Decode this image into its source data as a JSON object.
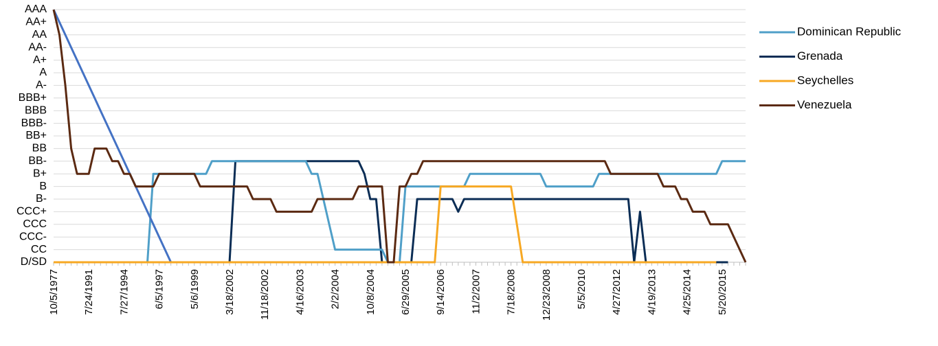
{
  "chart_data": {
    "type": "line",
    "categories": [
      "10/5/1977",
      null,
      null,
      null,
      null,
      null,
      "7/24/1991",
      null,
      null,
      null,
      null,
      null,
      "7/27/1994",
      null,
      null,
      null,
      null,
      null,
      "6/5/1997",
      null,
      null,
      null,
      null,
      null,
      "5/6/1999",
      null,
      null,
      null,
      null,
      null,
      "3/18/2002",
      null,
      null,
      null,
      null,
      null,
      "11/18/2002",
      null,
      null,
      null,
      null,
      null,
      "4/16/2003",
      null,
      null,
      null,
      null,
      null,
      "2/2/2004",
      null,
      null,
      null,
      null,
      null,
      "10/8/2004",
      null,
      null,
      null,
      null,
      null,
      "6/29/2005",
      null,
      null,
      null,
      null,
      null,
      "9/14/2006",
      null,
      null,
      null,
      null,
      null,
      "11/2/2007",
      null,
      null,
      null,
      null,
      null,
      "7/18/2008",
      null,
      null,
      null,
      null,
      null,
      "12/23/2008",
      null,
      null,
      null,
      null,
      null,
      "5/5/2010",
      null,
      null,
      null,
      null,
      null,
      "4/27/2012",
      null,
      null,
      null,
      null,
      null,
      "4/19/2013",
      null,
      null,
      null,
      null,
      null,
      "4/25/2014",
      null,
      null,
      null,
      null,
      null,
      "5/20/2015",
      null,
      null,
      null,
      null
    ],
    "ylim": [
      0,
      20
    ],
    "yticks": [
      {
        "value": 0,
        "label": "D/SD"
      },
      {
        "value": 1,
        "label": "CC"
      },
      {
        "value": 2,
        "label": "CCC-"
      },
      {
        "value": 3,
        "label": "CCC"
      },
      {
        "value": 4,
        "label": "CCC+"
      },
      {
        "value": 5,
        "label": "B-"
      },
      {
        "value": 6,
        "label": "B"
      },
      {
        "value": 7,
        "label": "B+"
      },
      {
        "value": 8,
        "label": "BB-"
      },
      {
        "value": 9,
        "label": "BB"
      },
      {
        "value": 10,
        "label": "BB+"
      },
      {
        "value": 11,
        "label": "BBB-"
      },
      {
        "value": 12,
        "label": "BBB"
      },
      {
        "value": 13,
        "label": "BBB+"
      },
      {
        "value": 14,
        "label": "A-"
      },
      {
        "value": 15,
        "label": "A"
      },
      {
        "value": 16,
        "label": "A+"
      },
      {
        "value": 17,
        "label": "AA-"
      },
      {
        "value": 18,
        "label": "AA"
      },
      {
        "value": 19,
        "label": "AA+"
      },
      {
        "value": 20,
        "label": "AAA"
      }
    ],
    "grid": true,
    "legend": "right",
    "series": [
      {
        "name": "Dominican Republic",
        "color": "#4f9fc8",
        "values": [
          0,
          0,
          0,
          0,
          0,
          0,
          0,
          0,
          0,
          0,
          0,
          0,
          0,
          0,
          0,
          0,
          0,
          7,
          7,
          7,
          7,
          7,
          7,
          7,
          7,
          7,
          7,
          8,
          8,
          8,
          8,
          8,
          8,
          8,
          8,
          8,
          8,
          8,
          8,
          8,
          8,
          8,
          8,
          8,
          7,
          7,
          5,
          3,
          1,
          1,
          1,
          1,
          1,
          1,
          1,
          1,
          1,
          0,
          0,
          0,
          6,
          6,
          6,
          6,
          6,
          6,
          6,
          6,
          6,
          6,
          6,
          7,
          7,
          7,
          7,
          7,
          7,
          7,
          7,
          7,
          7,
          7,
          7,
          7,
          6,
          6,
          6,
          6,
          6,
          6,
          6,
          6,
          6,
          7,
          7,
          7,
          7,
          7,
          7,
          7,
          7,
          7,
          7,
          7,
          7,
          7,
          7,
          7,
          7,
          7,
          7,
          7,
          7,
          7,
          8,
          8,
          8,
          8,
          8
        ]
      },
      {
        "name": "Grenada",
        "color": "#0b2d55",
        "values": [
          0,
          0,
          0,
          0,
          0,
          0,
          0,
          0,
          0,
          0,
          0,
          0,
          0,
          0,
          0,
          0,
          0,
          0,
          0,
          0,
          0,
          0,
          0,
          0,
          0,
          0,
          0,
          0,
          0,
          0,
          0,
          8,
          8,
          8,
          8,
          8,
          8,
          8,
          8,
          8,
          8,
          8,
          8,
          8,
          8,
          8,
          8,
          8,
          8,
          8,
          8,
          8,
          8,
          7,
          5,
          5,
          0,
          0,
          0,
          0,
          0,
          0,
          5,
          5,
          5,
          5,
          5,
          5,
          5,
          4,
          5,
          5,
          5,
          5,
          5,
          5,
          5,
          5,
          5,
          5,
          5,
          5,
          5,
          5,
          5,
          5,
          5,
          5,
          5,
          5,
          5,
          5,
          5,
          5,
          5,
          5,
          5,
          5,
          5,
          0,
          4,
          0,
          0,
          0,
          0,
          0,
          0,
          0,
          0,
          0,
          0,
          0,
          0,
          0,
          0,
          0,
          null,
          null,
          null
        ]
      },
      {
        "name": "Seychelles",
        "color": "#f7a823",
        "values": [
          0,
          0,
          0,
          0,
          0,
          0,
          0,
          0,
          0,
          0,
          0,
          0,
          0,
          0,
          0,
          0,
          0,
          0,
          0,
          0,
          0,
          0,
          0,
          0,
          0,
          0,
          0,
          0,
          0,
          0,
          0,
          0,
          0,
          0,
          0,
          0,
          0,
          0,
          0,
          0,
          0,
          0,
          0,
          0,
          0,
          0,
          0,
          0,
          0,
          0,
          0,
          0,
          0,
          0,
          0,
          0,
          0,
          0,
          0,
          0,
          0,
          0,
          0,
          0,
          0,
          0,
          6,
          6,
          6,
          6,
          6,
          6,
          6,
          6,
          6,
          6,
          6,
          6,
          6,
          3,
          0,
          0,
          0,
          0,
          0,
          0,
          0,
          0,
          0,
          0,
          0,
          0,
          0,
          0,
          0,
          0,
          0,
          0,
          0,
          0,
          0,
          0,
          0,
          0,
          0,
          0,
          0,
          0,
          0,
          0,
          0,
          0,
          0,
          0,
          null,
          null,
          null,
          null,
          null
        ]
      },
      {
        "name": "Venezuela",
        "color": "#5b2a12",
        "values": [
          20,
          18,
          14,
          9,
          7,
          7,
          7,
          9,
          9,
          9,
          8,
          8,
          7,
          7,
          6,
          6,
          6,
          6,
          7,
          7,
          7,
          7,
          7,
          7,
          7,
          6,
          6,
          6,
          6,
          6,
          6,
          6,
          6,
          6,
          5,
          5,
          5,
          5,
          4,
          4,
          4,
          4,
          4,
          4,
          4,
          5,
          5,
          5,
          5,
          5,
          5,
          5,
          6,
          6,
          6,
          6,
          6,
          0,
          0,
          6,
          6,
          7,
          7,
          8,
          8,
          8,
          8,
          8,
          8,
          8,
          8,
          8,
          8,
          8,
          8,
          8,
          8,
          8,
          8,
          8,
          8,
          8,
          8,
          8,
          8,
          8,
          8,
          8,
          8,
          8,
          8,
          8,
          8,
          8,
          8,
          7,
          7,
          7,
          7,
          7,
          7,
          7,
          7,
          7,
          6,
          6,
          6,
          5,
          5,
          4,
          4,
          4,
          3,
          3,
          3,
          3,
          2,
          1,
          0
        ]
      },
      {
        "color": "#4472c4",
        "values": [
          20,
          19,
          18,
          17,
          16,
          15,
          14,
          13,
          12,
          11,
          10,
          9,
          8,
          7,
          6,
          5,
          4,
          3,
          2,
          1,
          0,
          null,
          null,
          null,
          null,
          null,
          null,
          null,
          null,
          null,
          null,
          null,
          null,
          null,
          null,
          null,
          null,
          null,
          null,
          null,
          null,
          null,
          null,
          null,
          null,
          null,
          null,
          null,
          null,
          null,
          null,
          null,
          null,
          null,
          null,
          null,
          null,
          null,
          null,
          null,
          null,
          null,
          null,
          null,
          null,
          null,
          null,
          null,
          null,
          null,
          null,
          null,
          null,
          null,
          null,
          null,
          null,
          null,
          null,
          null,
          null,
          null,
          null,
          null,
          null,
          null,
          null,
          null,
          null,
          null,
          null,
          null,
          null,
          null,
          null,
          null,
          null,
          null,
          null,
          null,
          null,
          null,
          null,
          null,
          null,
          null,
          null,
          null,
          null,
          null,
          null,
          null,
          null,
          null,
          null,
          null,
          null,
          null,
          null
        ]
      }
    ]
  }
}
